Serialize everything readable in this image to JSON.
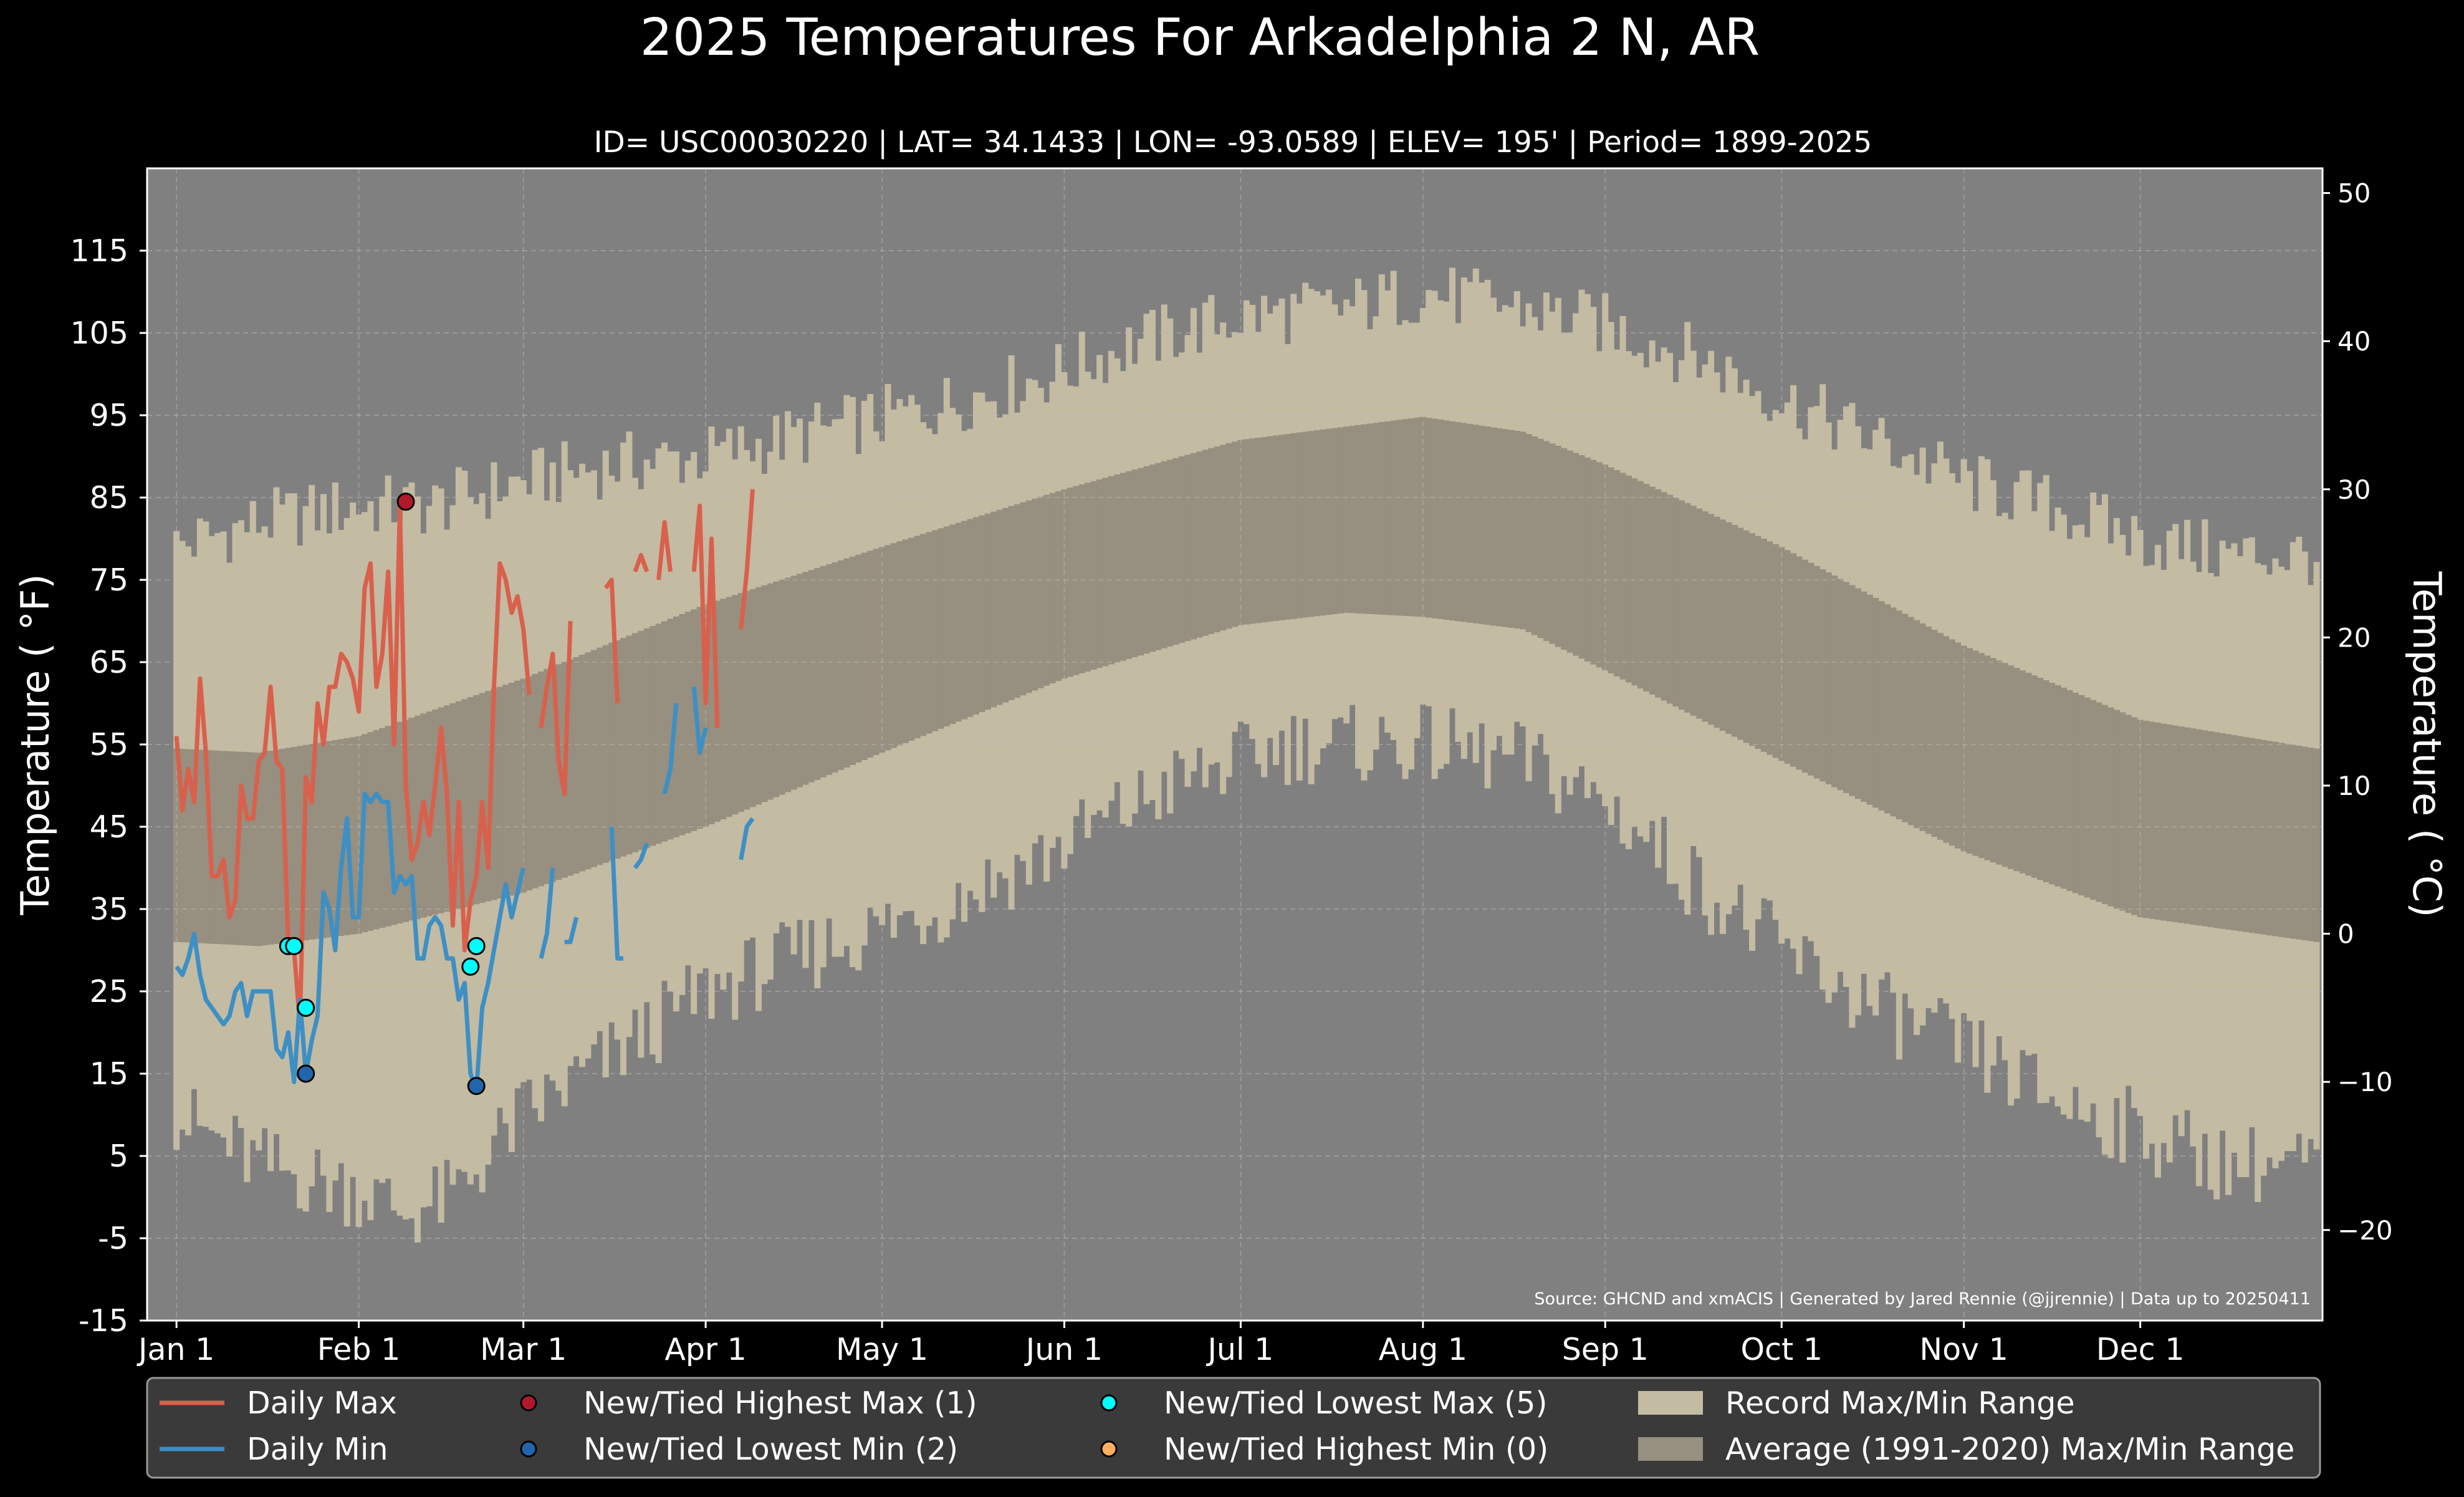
{
  "chart_data": {
    "type": "line",
    "title": "2025 Temperatures For Arkadelphia 2 N, AR",
    "subtitle": "ID= USC00030220 | LAT= 34.1433 | LON= -93.0589 | ELEV= 195' | Period= 1899-2025",
    "ylabel": "Temperature ($^\\circ$F)",
    "ylabel_display": "Temperature ( °F)",
    "y2label_display": "Temperature ( °C)",
    "ylim": [
      -15,
      125
    ],
    "y_ticks": [
      "-15",
      "-5",
      "5",
      "15",
      "25",
      "35",
      "45",
      "55",
      "65",
      "75",
      "85",
      "95",
      "105",
      "115"
    ],
    "y2_ticks": [
      "−20",
      "−10",
      "0",
      "10",
      "20",
      "30",
      "40",
      "50"
    ],
    "x_ticks": [
      {
        "day": 1,
        "label": "Jan 1"
      },
      {
        "day": 32,
        "label": "Feb 1"
      },
      {
        "day": 60,
        "label": "Mar 1"
      },
      {
        "day": 91,
        "label": "Apr 1"
      },
      {
        "day": 121,
        "label": "May 1"
      },
      {
        "day": 152,
        "label": "Jun 1"
      },
      {
        "day": 182,
        "label": "Jul 1"
      },
      {
        "day": 213,
        "label": "Aug 1"
      },
      {
        "day": 244,
        "label": "Sep 1"
      },
      {
        "day": 274,
        "label": "Oct 1"
      },
      {
        "day": 305,
        "label": "Nov 1"
      },
      {
        "day": 335,
        "label": "Dec 1"
      }
    ],
    "xlim": [
      -4,
      366
    ],
    "grid": true,
    "source": "Source: GHCND and xmACIS | Generated by Jared Rennie (@jjrennie) | Data up to 20250411",
    "record_range": {
      "name": "Record Max/Min Range",
      "max_anchors": [
        [
          1,
          79
        ],
        [
          15,
          82
        ],
        [
          32,
          84
        ],
        [
          45,
          84
        ],
        [
          60,
          87
        ],
        [
          75,
          89
        ],
        [
          91,
          90
        ],
        [
          110,
          93
        ],
        [
          130,
          96
        ],
        [
          150,
          100
        ],
        [
          165,
          104
        ],
        [
          182,
          107
        ],
        [
          200,
          108
        ],
        [
          213,
          110
        ],
        [
          230,
          108
        ],
        [
          244,
          106
        ],
        [
          260,
          102
        ],
        [
          274,
          97
        ],
        [
          290,
          92
        ],
        [
          305,
          87
        ],
        [
          320,
          84
        ],
        [
          335,
          80
        ],
        [
          350,
          78
        ],
        [
          365,
          78
        ]
      ],
      "min_anchors": [
        [
          1,
          10
        ],
        [
          15,
          4
        ],
        [
          25,
          2
        ],
        [
          32,
          1
        ],
        [
          40,
          -2
        ],
        [
          48,
          0
        ],
        [
          55,
          6
        ],
        [
          60,
          10
        ],
        [
          75,
          17
        ],
        [
          91,
          25
        ],
        [
          110,
          30
        ],
        [
          130,
          35
        ],
        [
          150,
          42
        ],
        [
          170,
          50
        ],
        [
          190,
          55
        ],
        [
          213,
          55
        ],
        [
          230,
          53
        ],
        [
          244,
          48
        ],
        [
          260,
          38
        ],
        [
          274,
          30
        ],
        [
          290,
          23
        ],
        [
          305,
          18
        ],
        [
          320,
          12
        ],
        [
          335,
          8
        ],
        [
          350,
          4
        ],
        [
          365,
          4
        ]
      ]
    },
    "normal_range": {
      "name": "Average (1991-2020) Max/Min Range",
      "max_anchors": [
        [
          1,
          54.5
        ],
        [
          15,
          54
        ],
        [
          32,
          56
        ],
        [
          60,
          63
        ],
        [
          91,
          72
        ],
        [
          121,
          79
        ],
        [
          152,
          86
        ],
        [
          182,
          92
        ],
        [
          213,
          94.8
        ],
        [
          230,
          93
        ],
        [
          244,
          89
        ],
        [
          274,
          79
        ],
        [
          305,
          67
        ],
        [
          335,
          58
        ],
        [
          365,
          54.5
        ]
      ],
      "min_anchors": [
        [
          1,
          31
        ],
        [
          15,
          30.5
        ],
        [
          32,
          32
        ],
        [
          60,
          37
        ],
        [
          91,
          45
        ],
        [
          121,
          54
        ],
        [
          152,
          63
        ],
        [
          182,
          69.5
        ],
        [
          200,
          71
        ],
        [
          213,
          70.5
        ],
        [
          230,
          69
        ],
        [
          244,
          64
        ],
        [
          274,
          53
        ],
        [
          305,
          42
        ],
        [
          335,
          34
        ],
        [
          365,
          31
        ]
      ]
    },
    "series": [
      {
        "name": "Daily Max",
        "color": "#d9604c",
        "values": [
          56,
          47,
          52,
          48,
          63,
          54,
          39,
          39,
          41,
          34,
          36,
          50,
          46,
          46,
          53,
          54,
          62,
          53,
          52,
          31,
          30,
          21,
          51,
          48,
          60,
          55,
          62,
          62,
          66,
          65,
          63,
          59,
          74,
          77,
          62,
          66,
          76,
          55,
          84,
          50,
          41,
          43,
          48,
          44,
          50,
          57,
          49,
          33,
          48,
          30,
          36,
          39,
          48,
          40,
          62,
          77,
          75,
          71,
          73,
          69,
          61,
          null,
          57,
          62,
          66,
          53,
          49,
          70,
          null,
          null,
          null,
          null,
          null,
          74,
          75,
          60,
          null,
          null,
          76,
          78,
          76,
          null,
          75,
          82,
          76,
          null,
          null,
          null,
          76,
          84,
          60,
          80,
          57,
          null,
          null,
          null,
          69,
          76,
          86
        ]
      },
      {
        "name": "Daily Min",
        "color": "#3d8fc4",
        "values": [
          28,
          27,
          29,
          32,
          27,
          24,
          23,
          22,
          21,
          22,
          25,
          26,
          22,
          25,
          25,
          25,
          25,
          18,
          17,
          20,
          14,
          24,
          15,
          19,
          22,
          37,
          35,
          30,
          40,
          46,
          34,
          34,
          49,
          48,
          49,
          48,
          48,
          37,
          39,
          38,
          39,
          29,
          29,
          33,
          34,
          33,
          29,
          29,
          24,
          26,
          15,
          13,
          23,
          26,
          30,
          34,
          38,
          34,
          37,
          40,
          null,
          null,
          29,
          32,
          40,
          null,
          31,
          31,
          34,
          null,
          null,
          null,
          null,
          null,
          45,
          29,
          29,
          null,
          40,
          41,
          43,
          null,
          null,
          49,
          52,
          60,
          null,
          null,
          62,
          54,
          57,
          null,
          47,
          null,
          null,
          null,
          41,
          45,
          46
        ]
      }
    ],
    "markers": [
      {
        "name": "New/Tied Highest Max (1)",
        "color": "#b2182b",
        "points": [
          [
            40,
            84.5
          ]
        ]
      },
      {
        "name": "New/Tied Lowest Min (2)",
        "color": "#2166ac",
        "points": [
          [
            23,
            15
          ],
          [
            52,
            13.5
          ]
        ]
      },
      {
        "name": "New/Tied Lowest Max (5)",
        "color": "#00ffff",
        "points": [
          [
            20,
            30.5
          ],
          [
            21,
            30.5
          ],
          [
            23,
            23
          ],
          [
            51,
            28
          ],
          [
            52,
            30.5
          ]
        ]
      },
      {
        "name": "New/Tied Highest Min (0)",
        "color": "#fdae61",
        "points": []
      }
    ],
    "legend": {
      "position": "bottom",
      "items": [
        {
          "label": "Daily Max",
          "kind": "line",
          "color": "#d9604c"
        },
        {
          "label": "Daily Min",
          "kind": "line",
          "color": "#3d8fc4"
        },
        {
          "label": "New/Tied Highest Max (1)",
          "kind": "dot",
          "color": "#b2182b"
        },
        {
          "label": "New/Tied Lowest Min (2)",
          "kind": "dot",
          "color": "#2166ac"
        },
        {
          "label": "New/Tied Lowest Max (5)",
          "kind": "dot",
          "color": "#00ffff"
        },
        {
          "label": "New/Tied Highest Min (0)",
          "kind": "dot",
          "color": "#fdae61"
        },
        {
          "label": "Record Max/Min Range",
          "kind": "patch",
          "color": "#c4bba3"
        },
        {
          "label": "Average (1991-2020) Max/Min Range",
          "kind": "patch",
          "color": "#978f7f"
        }
      ]
    }
  }
}
